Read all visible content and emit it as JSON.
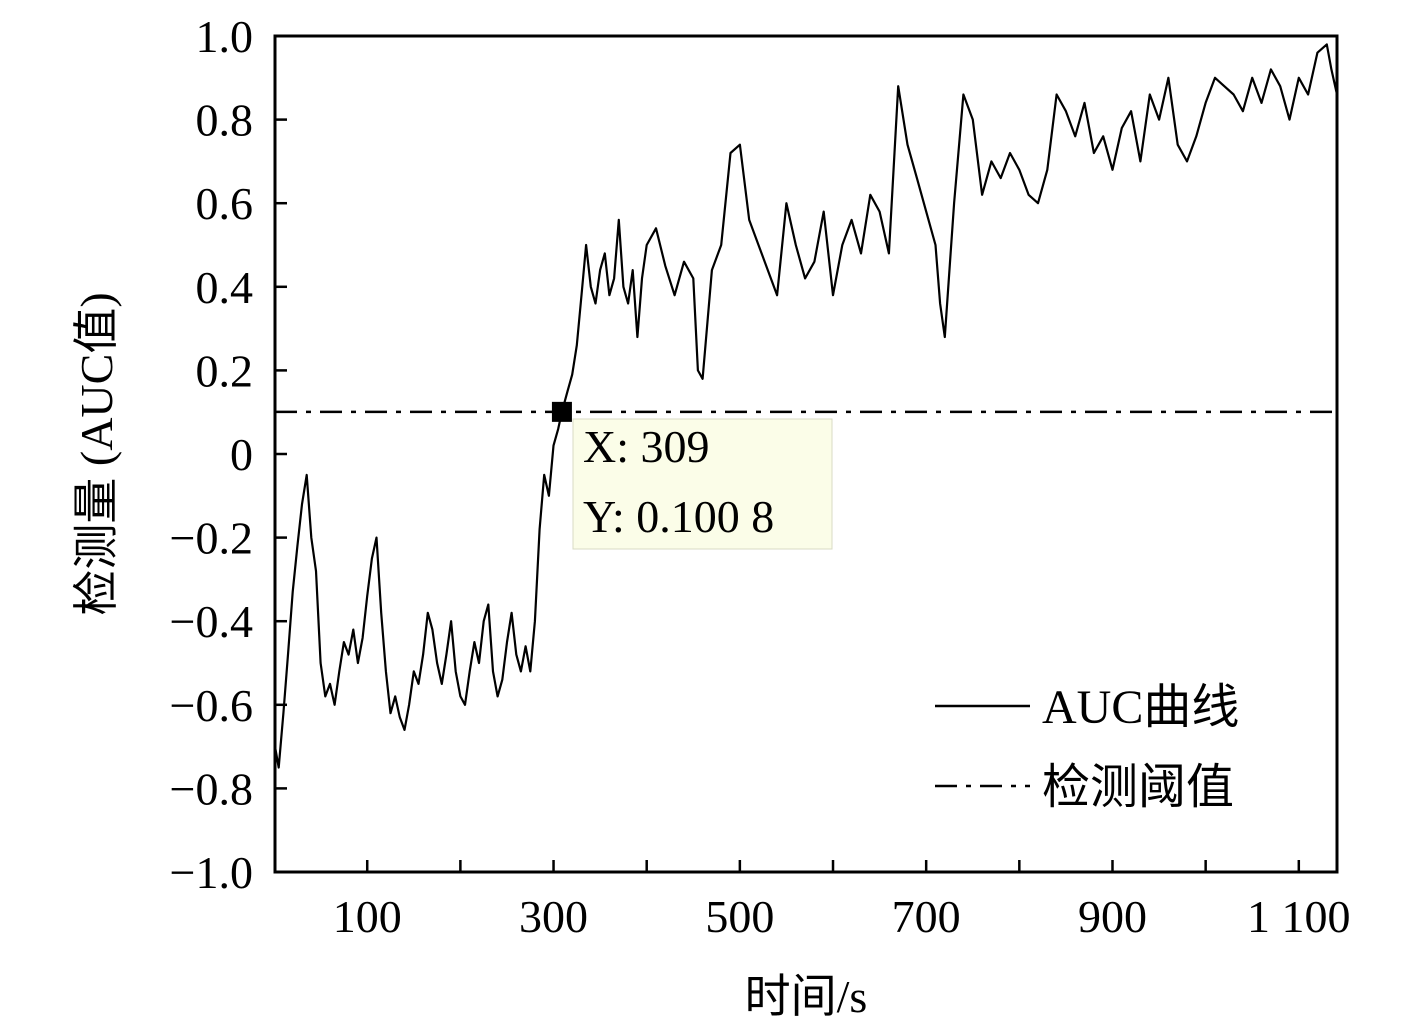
{
  "chart_data": {
    "type": "line",
    "title": "",
    "xlabel": "时间/s",
    "ylabel": "检测量 (AUC值)",
    "xlim": [
      1,
      1141
    ],
    "ylim": [
      -1.0,
      1.0
    ],
    "grid": false,
    "legend_position": "bottom-right",
    "x_ticks": [
      100,
      300,
      500,
      700,
      900,
      1100
    ],
    "x_tick_labels": [
      "100",
      "300",
      "500",
      "700",
      "900",
      "1 100"
    ],
    "y_ticks": [
      -1.0,
      -0.8,
      -0.6,
      -0.4,
      -0.2,
      0,
      0.2,
      0.4,
      0.6,
      0.8,
      1.0
    ],
    "y_tick_labels": [
      "−1.0",
      "−0.8",
      "−0.6",
      "−0.4",
      "−0.2",
      "0",
      "0.2",
      "0.4",
      "0.6",
      "0.8",
      "1.0"
    ],
    "series": [
      {
        "name": "AUC曲线",
        "style": "solid",
        "color": "#000000",
        "x": [
          1,
          5,
          10,
          15,
          20,
          25,
          30,
          35,
          40,
          45,
          50,
          55,
          60,
          65,
          70,
          75,
          80,
          85,
          90,
          95,
          100,
          105,
          110,
          115,
          120,
          125,
          130,
          135,
          140,
          145,
          150,
          155,
          160,
          165,
          170,
          175,
          180,
          185,
          190,
          195,
          200,
          205,
          210,
          215,
          220,
          225,
          230,
          235,
          240,
          245,
          250,
          255,
          260,
          265,
          270,
          275,
          280,
          285,
          290,
          295,
          300,
          305,
          309,
          315,
          320,
          325,
          330,
          335,
          340,
          345,
          350,
          355,
          360,
          365,
          370,
          375,
          380,
          385,
          390,
          395,
          400,
          410,
          420,
          430,
          440,
          450,
          455,
          460,
          470,
          480,
          490,
          500,
          510,
          520,
          530,
          540,
          550,
          560,
          570,
          580,
          590,
          600,
          610,
          620,
          630,
          640,
          650,
          660,
          670,
          680,
          690,
          700,
          710,
          715,
          720,
          730,
          740,
          750,
          760,
          770,
          780,
          790,
          800,
          810,
          820,
          830,
          840,
          850,
          860,
          870,
          880,
          890,
          900,
          910,
          920,
          930,
          940,
          950,
          960,
          970,
          980,
          990,
          1000,
          1010,
          1020,
          1030,
          1040,
          1050,
          1060,
          1070,
          1080,
          1090,
          1100,
          1110,
          1120,
          1130,
          1135,
          1141
        ],
        "y": [
          -0.7,
          -0.75,
          -0.62,
          -0.48,
          -0.33,
          -0.22,
          -0.12,
          -0.05,
          -0.2,
          -0.28,
          -0.5,
          -0.58,
          -0.55,
          -0.6,
          -0.52,
          -0.45,
          -0.48,
          -0.42,
          -0.5,
          -0.44,
          -0.34,
          -0.25,
          -0.2,
          -0.38,
          -0.52,
          -0.62,
          -0.58,
          -0.63,
          -0.66,
          -0.6,
          -0.52,
          -0.55,
          -0.48,
          -0.38,
          -0.42,
          -0.5,
          -0.55,
          -0.48,
          -0.4,
          -0.52,
          -0.58,
          -0.6,
          -0.52,
          -0.45,
          -0.5,
          -0.4,
          -0.36,
          -0.52,
          -0.58,
          -0.54,
          -0.45,
          -0.38,
          -0.48,
          -0.52,
          -0.46,
          -0.52,
          -0.4,
          -0.18,
          -0.05,
          -0.1,
          0.02,
          0.06,
          0.1008,
          0.15,
          0.19,
          0.26,
          0.38,
          0.5,
          0.4,
          0.36,
          0.44,
          0.48,
          0.38,
          0.42,
          0.56,
          0.4,
          0.36,
          0.44,
          0.28,
          0.42,
          0.5,
          0.54,
          0.45,
          0.38,
          0.46,
          0.42,
          0.2,
          0.18,
          0.44,
          0.5,
          0.72,
          0.74,
          0.56,
          0.5,
          0.44,
          0.38,
          0.6,
          0.5,
          0.42,
          0.46,
          0.58,
          0.38,
          0.5,
          0.56,
          0.48,
          0.62,
          0.58,
          0.48,
          0.88,
          0.74,
          0.66,
          0.58,
          0.5,
          0.36,
          0.28,
          0.6,
          0.86,
          0.8,
          0.62,
          0.7,
          0.66,
          0.72,
          0.68,
          0.62,
          0.6,
          0.68,
          0.86,
          0.82,
          0.76,
          0.84,
          0.72,
          0.76,
          0.68,
          0.78,
          0.82,
          0.7,
          0.86,
          0.8,
          0.9,
          0.74,
          0.7,
          0.76,
          0.84,
          0.9,
          0.88,
          0.86,
          0.82,
          0.9,
          0.84,
          0.92,
          0.88,
          0.8,
          0.9,
          0.86,
          0.96,
          0.98,
          0.92,
          0.86
        ]
      },
      {
        "name": "检测阈值",
        "style": "dash-dot",
        "color": "#000000",
        "x": [
          1,
          1141
        ],
        "y": [
          0.1008,
          0.1008
        ]
      }
    ],
    "marker": {
      "x": 309,
      "y": 0.1008,
      "shape": "square",
      "label_x": "X: 309",
      "label_y": "Y: 0.100 8",
      "box_color": "#fbfde8"
    }
  }
}
